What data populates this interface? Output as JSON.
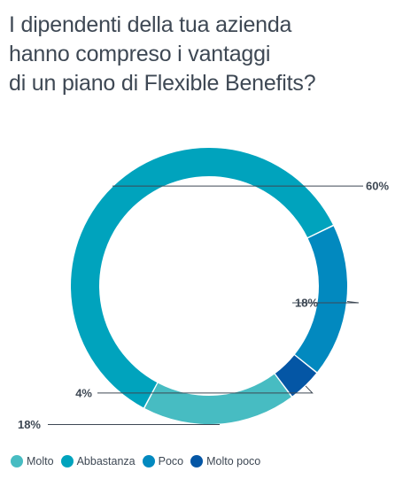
{
  "title_lines": [
    "I dipendenti della tua azienda",
    "hanno compreso i vantaggi",
    "di un piano di Flexible Benefits?"
  ],
  "chart_data": {
    "type": "pie",
    "donut": true,
    "title": "I dipendenti della tua azienda hanno compreso i vantaggi di un piano di Flexible Benefits?",
    "categories": [
      "Molto",
      "Abbastanza",
      "Poco",
      "Molto poco"
    ],
    "values": [
      18,
      60,
      18,
      4
    ],
    "value_labels": [
      "18%",
      "60%",
      "18%",
      "4%"
    ],
    "colors": [
      "#47bcc2",
      "#00a3bd",
      "#0289bf",
      "#0456a5"
    ],
    "legend_position": "bottom-left"
  }
}
